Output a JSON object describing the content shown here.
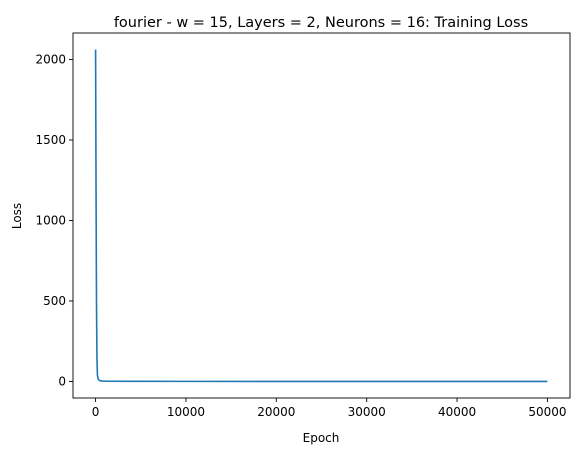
{
  "chart_data": {
    "type": "line",
    "title": "fourier - w = 15, Layers = 2, Neurons = 16: Training Loss",
    "xlabel": "Epoch",
    "ylabel": "Loss",
    "xlim": [
      -2500,
      52500
    ],
    "ylim": [
      -103,
      2165
    ],
    "xticks": [
      0,
      10000,
      20000,
      30000,
      40000,
      50000
    ],
    "xtick_labels": [
      "0",
      "10000",
      "20000",
      "30000",
      "40000",
      "50000"
    ],
    "yticks": [
      0,
      500,
      1000,
      1500,
      2000
    ],
    "ytick_labels": [
      "0",
      "500",
      "1000",
      "1500",
      "2000"
    ],
    "grid": false,
    "legend": "none",
    "series": [
      {
        "color": "#1f77b4",
        "x": [
          0,
          50,
          100,
          150,
          200,
          300,
          500,
          800,
          1500,
          5000,
          10000,
          20000,
          30000,
          40000,
          50000
        ],
        "y": [
          2062,
          1200,
          500,
          150,
          40,
          12,
          4,
          2,
          1,
          0.5,
          0.3,
          0.2,
          0.15,
          0.12,
          0.1
        ]
      }
    ]
  }
}
